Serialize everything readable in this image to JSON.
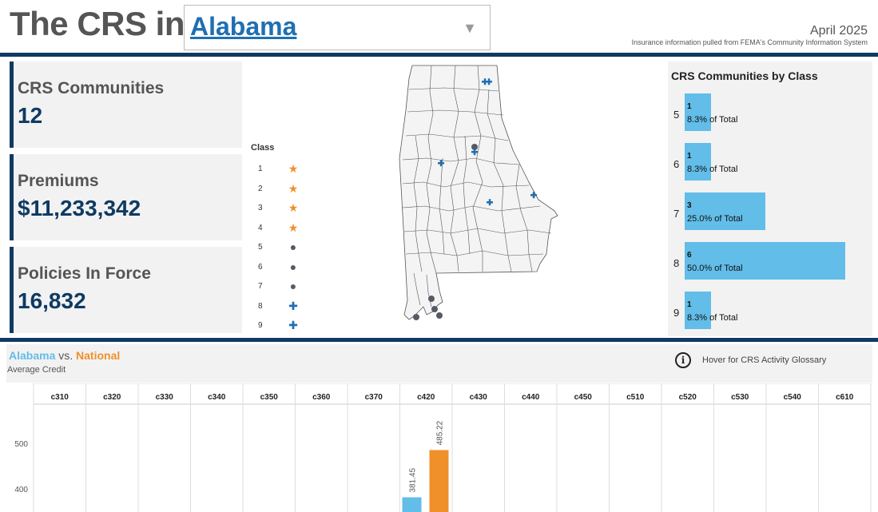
{
  "header": {
    "title": "The CRS in",
    "state_selected": "Alabama",
    "date": "April 2025",
    "source": "Insurance information pulled from FEMA's Community Information System"
  },
  "kpis": [
    {
      "label": "CRS Communities",
      "value": "12"
    },
    {
      "label": "Premiums",
      "value": "$11,233,342"
    },
    {
      "label": "Policies In Force",
      "value": "16,832"
    }
  ],
  "legend": {
    "title": "Class",
    "items": [
      {
        "class": "1",
        "symbol": "star"
      },
      {
        "class": "2",
        "symbol": "star"
      },
      {
        "class": "3",
        "symbol": "star"
      },
      {
        "class": "4",
        "symbol": "star"
      },
      {
        "class": "5",
        "symbol": "dot"
      },
      {
        "class": "6",
        "symbol": "dot"
      },
      {
        "class": "7",
        "symbol": "dot"
      },
      {
        "class": "8",
        "symbol": "plus"
      },
      {
        "class": "9",
        "symbol": "plus"
      }
    ]
  },
  "class_chart": {
    "title": "CRS Communities by Class",
    "rows": [
      {
        "class": "5",
        "count": "1",
        "pct_label": "8.3% of Total",
        "share": 0.083
      },
      {
        "class": "6",
        "count": "1",
        "pct_label": "8.3% of Total",
        "share": 0.083
      },
      {
        "class": "7",
        "count": "3",
        "pct_label": "25.0% of Total",
        "share": 0.25
      },
      {
        "class": "8",
        "count": "6",
        "pct_label": "50.0% of Total",
        "share": 0.5
      },
      {
        "class": "9",
        "count": "1",
        "pct_label": "8.3% of Total",
        "share": 0.083
      }
    ]
  },
  "comparison": {
    "state_label": "Alabama",
    "vs_label": "vs.",
    "national_label": "National",
    "subtitle": "Average Credit",
    "hover_text": "Hover for CRS Activity Glossary"
  },
  "colors": {
    "accent": "#0e3a63",
    "state": "#62bde8",
    "national": "#f0902a"
  },
  "chart_data": {
    "type": "bar",
    "categories": [
      "c310",
      "c320",
      "c330",
      "c340",
      "c350",
      "c360",
      "c370",
      "c420",
      "c430",
      "c440",
      "c450",
      "c510",
      "c520",
      "c530",
      "c540",
      "c610"
    ],
    "series": [
      {
        "name": "Alabama",
        "values": [
          null,
          null,
          null,
          null,
          null,
          null,
          null,
          381.45,
          null,
          null,
          null,
          null,
          null,
          null,
          null,
          null
        ]
      },
      {
        "name": "National",
        "values": [
          null,
          null,
          null,
          null,
          null,
          null,
          null,
          485.22,
          null,
          null,
          null,
          null,
          null,
          null,
          null,
          null
        ]
      }
    ],
    "y_ticks": [
      400,
      500
    ],
    "ylim_visible": [
      340,
      590
    ],
    "data_labels": {
      "c420": [
        "381.45",
        "485.22"
      ]
    },
    "xlabel": "",
    "ylabel": ""
  }
}
